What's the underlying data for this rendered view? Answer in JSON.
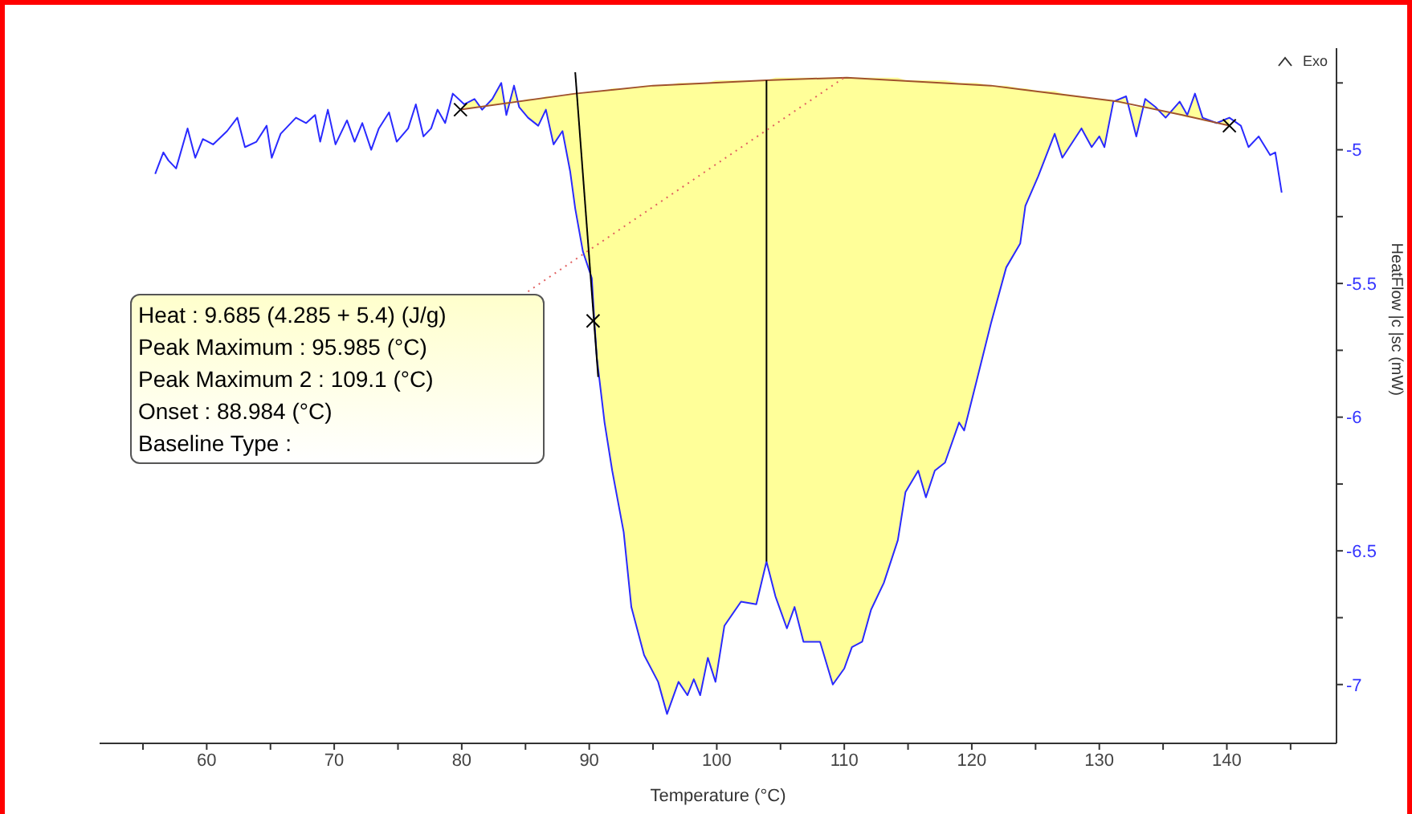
{
  "chart_data": {
    "type": "line",
    "xlabel": "Temperature (°C)",
    "ylabel": "HeatFlow |c |sc (mW)",
    "xlim": [
      51.6,
      148.6
    ],
    "ylim": [
      -7.22,
      -4.62
    ],
    "xticks": [
      {
        "value": 55,
        "label": null
      },
      60,
      {
        "value": 65,
        "label": null
      },
      70,
      {
        "value": 75,
        "label": null
      },
      80,
      {
        "value": 85,
        "label": null
      },
      90,
      {
        "value": 95,
        "label": null
      },
      100,
      {
        "value": 105,
        "label": null
      },
      110,
      {
        "value": 115,
        "label": null
      },
      120,
      {
        "value": 125,
        "label": null
      },
      130,
      {
        "value": 135,
        "label": null
      },
      140,
      {
        "value": 145,
        "label": null
      }
    ],
    "yticks": [
      {
        "value": -4.75,
        "label": null
      },
      -5,
      {
        "value": -5.25,
        "label": null
      },
      -5.5,
      {
        "value": -5.75,
        "label": null
      },
      -6,
      {
        "value": -6.25,
        "label": null
      },
      -6.5,
      {
        "value": -6.75,
        "label": null
      },
      -7
    ],
    "annotations": [
      "Heat :  9.685 (4.285 + 5.4)  (J/g)",
      "Peak Maximum :  95.985 (°C)",
      "Peak Maximum 2 :  109.1 (°C)",
      "Onset :  88.984 (°C)",
      "Baseline Type :",
      "Exo"
    ],
    "series": [
      {
        "color": "#2a2aff",
        "marker": "none",
        "x": [
          55.96,
          56.6,
          57.0,
          57.6,
          58.5,
          59.1,
          59.7,
          60.5,
          61.6,
          62.4,
          63.0,
          63.9,
          64.7,
          65.1,
          65.8,
          67.0,
          67.8,
          68.5,
          68.9,
          69.5,
          70.1,
          71.0,
          71.6,
          72.2,
          72.9,
          73.5,
          74.3,
          74.9,
          75.8,
          76.4,
          77.0,
          77.6,
          78.1,
          78.7,
          79.3,
          80.2,
          81.0,
          81.6,
          82.4,
          83.1,
          83.5,
          84.1,
          84.5,
          85.2,
          86.0,
          86.6,
          87.2,
          87.9,
          88.5,
          88.9,
          89.5,
          90.2,
          90.4,
          90.6,
          91.2,
          91.8,
          92.7,
          93.3,
          94.3,
          95.4,
          96.1,
          97.0,
          97.7,
          98.2,
          98.7,
          99.3,
          99.9,
          100.6,
          101.9,
          103.1,
          103.9,
          104.6,
          105.5,
          106.1,
          106.8,
          108.1,
          109.1,
          110.0,
          110.6,
          111.4,
          112.1,
          113.1,
          114.2,
          114.8,
          115.8,
          116.4,
          117.1,
          117.9,
          119.0,
          119.4,
          120.4,
          121.5,
          122.7,
          123.8,
          124.2,
          125.2,
          126.5,
          127.1,
          128.6,
          129.4,
          130.0,
          130.4,
          131.1,
          132.1,
          132.9,
          133.6,
          134.4,
          135.2,
          136.3,
          136.9,
          137.5,
          138.1,
          139.2,
          140.2,
          141.1,
          141.7,
          142.5,
          143.4,
          143.8,
          144.3
        ],
        "values": [
          -5.09,
          -5.01,
          -5.04,
          -5.07,
          -4.92,
          -5.03,
          -4.96,
          -4.98,
          -4.93,
          -4.88,
          -4.99,
          -4.97,
          -4.91,
          -5.03,
          -4.94,
          -4.88,
          -4.9,
          -4.87,
          -4.97,
          -4.85,
          -4.98,
          -4.89,
          -4.97,
          -4.9,
          -5.0,
          -4.92,
          -4.86,
          -4.97,
          -4.92,
          -4.83,
          -4.95,
          -4.92,
          -4.85,
          -4.9,
          -4.79,
          -4.83,
          -4.81,
          -4.85,
          -4.81,
          -4.75,
          -4.87,
          -4.76,
          -4.84,
          -4.88,
          -4.91,
          -4.85,
          -4.98,
          -4.93,
          -5.08,
          -5.22,
          -5.38,
          -5.48,
          -5.64,
          -5.78,
          -6.02,
          -6.2,
          -6.43,
          -6.71,
          -6.89,
          -6.99,
          -7.11,
          -6.99,
          -7.04,
          -6.98,
          -7.04,
          -6.9,
          -6.99,
          -6.78,
          -6.69,
          -6.7,
          -6.54,
          -6.67,
          -6.79,
          -6.71,
          -6.84,
          -6.84,
          -7.0,
          -6.94,
          -6.86,
          -6.84,
          -6.72,
          -6.62,
          -6.46,
          -6.28,
          -6.2,
          -6.3,
          -6.2,
          -6.17,
          -6.02,
          -6.05,
          -5.86,
          -5.65,
          -5.44,
          -5.35,
          -5.21,
          -5.1,
          -4.94,
          -5.03,
          -4.92,
          -4.99,
          -4.95,
          -4.99,
          -4.82,
          -4.8,
          -4.95,
          -4.81,
          -4.84,
          -4.88,
          -4.82,
          -4.87,
          -4.79,
          -4.88,
          -4.9,
          -4.88,
          -4.91,
          -4.99,
          -4.95,
          -5.02,
          -5.01,
          -5.16
        ],
        "lower": [
          null,
          null,
          null,
          null,
          null,
          null,
          null,
          null,
          null,
          null,
          null,
          null,
          null,
          null,
          null,
          null,
          null,
          null,
          null,
          null,
          null,
          null,
          null,
          null,
          null,
          null,
          null,
          null,
          null,
          null,
          null,
          null,
          null,
          null,
          null,
          -4.83,
          -4.81,
          -4.85,
          -4.81,
          -4.75,
          -4.87,
          -4.76,
          -4.84,
          -4.88,
          -4.91,
          -4.85,
          -4.98,
          -4.93,
          -5.08,
          -5.22,
          -5.38,
          -5.48,
          -5.64,
          -5.78,
          -6.02,
          -6.2,
          -6.43,
          -6.71,
          -6.89,
          -6.99,
          -7.11,
          -6.99,
          -7.04,
          -6.98,
          -7.04,
          -6.9,
          -6.99,
          -6.78,
          -6.69,
          -6.7,
          -6.54,
          -6.67,
          -6.79,
          -6.71,
          -6.84,
          -6.84,
          -7.0,
          -6.94,
          -6.86,
          -6.84,
          -6.72,
          -6.62,
          -6.46,
          -6.28,
          -6.2,
          -6.3,
          -6.2,
          -6.17,
          -6.02,
          -6.05,
          -5.86,
          -5.65,
          -5.44,
          -5.35,
          -5.21,
          -5.1,
          -4.94,
          -5.03,
          -4.92,
          -4.99,
          -4.95,
          -4.99,
          -4.82,
          -4.8,
          -4.95,
          -4.81,
          -4.84,
          -4.88,
          -4.82,
          -4.87,
          -4.79,
          -4.88,
          -4.9,
          -4.88,
          null,
          null,
          null,
          null,
          null,
          null
        ],
        "upper": [
          null,
          null,
          null,
          null,
          null,
          null,
          null,
          null,
          null,
          null,
          null,
          null,
          null,
          null,
          null,
          null,
          null,
          null,
          null,
          null,
          null,
          null,
          null,
          null,
          null,
          null,
          null,
          null,
          null,
          null,
          null,
          null,
          null,
          null,
          null,
          -4.85,
          -4.84,
          -4.84,
          -4.83,
          -4.83,
          -4.82,
          -4.82,
          -4.82,
          -4.81,
          -4.81,
          -4.8,
          -4.8,
          -4.8,
          -4.79,
          -4.79,
          -4.79,
          -4.78,
          -4.78,
          -4.78,
          -4.78,
          -4.77,
          -4.77,
          -4.77,
          -4.76,
          -4.76,
          -4.76,
          -4.75,
          -4.75,
          -4.75,
          -4.75,
          -4.75,
          -4.74,
          -4.74,
          -4.74,
          -4.74,
          -4.74,
          -4.73,
          -4.73,
          -4.73,
          -4.73,
          -4.73,
          -4.73,
          -4.73,
          -4.73,
          -4.73,
          -4.73,
          -4.73,
          -4.73,
          -4.74,
          -4.74,
          -4.74,
          -4.74,
          -4.74,
          -4.75,
          -4.75,
          -4.75,
          -4.76,
          -4.76,
          -4.77,
          -4.77,
          -4.78,
          -4.78,
          -4.79,
          -4.8,
          -4.81,
          -4.81,
          -4.81,
          -4.82,
          -4.83,
          -4.84,
          -4.84,
          -4.85,
          -4.86,
          -4.87,
          -4.88,
          -4.88,
          -4.89,
          -4.9,
          -4.91,
          null,
          null,
          null,
          null,
          null,
          null
        ]
      },
      {
        "type": "line",
        "color": "#a0522d",
        "marker": "none",
        "x": [
          79.9,
          88.9,
          95.0,
          103.9,
          110.2,
          121.5,
          131.5,
          136.5,
          140.2
        ],
        "values": [
          -4.85,
          -4.79,
          -4.76,
          -4.74,
          -4.73,
          -4.76,
          -4.82,
          -4.87,
          -4.91
        ]
      },
      {
        "type": "line",
        "color": "#000000",
        "marker": "none",
        "x": [
          88.9,
          90.7
        ],
        "values": [
          -4.71,
          -5.85
        ]
      },
      {
        "type": "line",
        "color": "#000000",
        "marker": "none",
        "x": [
          103.9,
          103.9
        ],
        "values": [
          -4.74,
          -6.54
        ]
      },
      {
        "type": "line",
        "color": "#e06060",
        "marker": "none",
        "line_style": "dotted",
        "x": [
          85.2,
          110.0
        ],
        "values": [
          -5.53,
          -4.73
        ]
      },
      {
        "type": "scatter",
        "color": "#000000",
        "marker": "cross",
        "x": [
          79.9,
          140.2,
          90.3
        ],
        "values": [
          -4.85,
          -4.91,
          -5.64
        ]
      }
    ]
  }
}
